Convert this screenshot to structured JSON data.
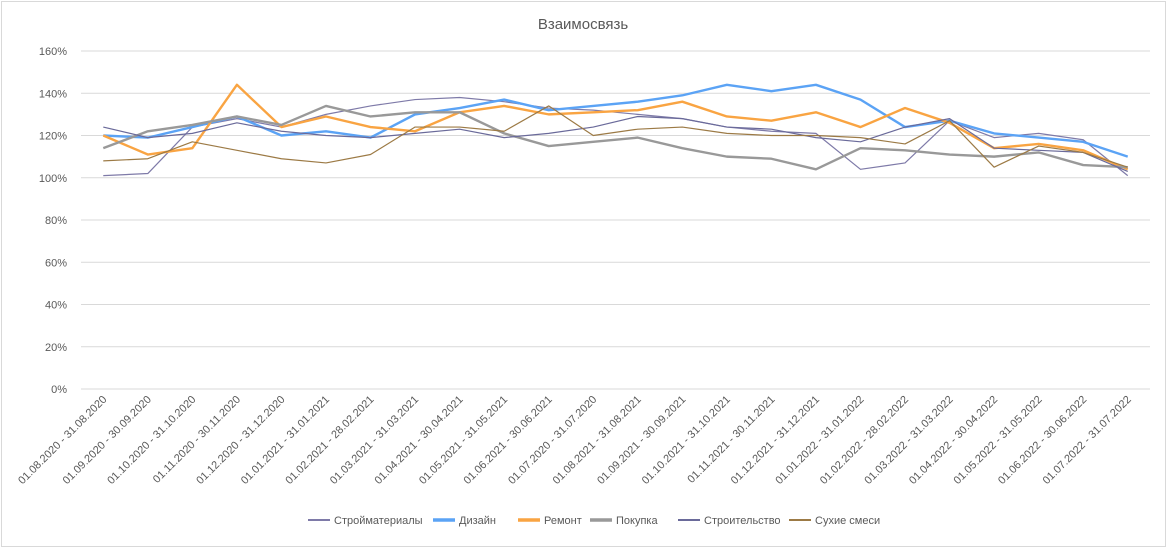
{
  "chart_data": {
    "type": "line",
    "title": "Взаимосвязь",
    "xlabel": "",
    "ylabel": "",
    "ylim": [
      0,
      160
    ],
    "yticks": [
      "0%",
      "20%",
      "40%",
      "60%",
      "80%",
      "100%",
      "120%",
      "140%",
      "160%"
    ],
    "grid": true,
    "legend_position": "bottom",
    "categories": [
      "01.08.2020 - 31.08.2020",
      "01.09.2020 - 30.09.2020",
      "01.10.2020 - 31.10.2020",
      "01.11.2020 - 30.11.2020",
      "01.12.2020 - 31.12.2020",
      "01.01.2021 - 31.01.2021",
      "01.02.2021 - 28.02.2021",
      "01.03.2021 - 31.03.2021",
      "01.04.2021 - 30.04.2021",
      "01.05.2021 - 31.05.2021",
      "01.06.2021 - 30.06.2021",
      "01.07.2020 - 31.07.2020",
      "01.08.2021 - 31.08.2021",
      "01.09.2021 - 30.09.2021",
      "01.10.2021 - 31.10.2021",
      "01.11.2021 - 30.11.2021",
      "01.12.2021 - 31.12.2021",
      "01.01.2022 - 31.01.2022",
      "01.02.2022 - 28.02.2022",
      "01.03.2022 - 31.03.2022",
      "01.04.2022 - 30.04.2022",
      "01.05.2022 - 31.05.2022",
      "01.06.2022 - 30.06.2022",
      "01.07.2022 - 31.07.2022"
    ],
    "series": [
      {
        "name": "Стройматериалы",
        "color": "#7e7aa8",
        "width": 1,
        "values": [
          101,
          102,
          124,
          128,
          124,
          130,
          134,
          137,
          138,
          136,
          133,
          132,
          130,
          128,
          124,
          122,
          121,
          104,
          107,
          127,
          119,
          121,
          118,
          101
        ]
      },
      {
        "name": "Дизайн",
        "color": "#5ba3f5",
        "width": 2,
        "values": [
          120,
          119,
          124,
          129,
          120,
          122,
          119,
          130,
          133,
          137,
          132,
          134,
          136,
          139,
          144,
          141,
          144,
          137,
          124,
          127,
          121,
          119,
          117,
          110
        ]
      },
      {
        "name": "Ремонт",
        "color": "#f9a442",
        "width": 2,
        "values": [
          120,
          111,
          114,
          144,
          124,
          129,
          124,
          122,
          131,
          134,
          130,
          131,
          132,
          136,
          129,
          127,
          131,
          124,
          133,
          126,
          114,
          116,
          113,
          104
        ]
      },
      {
        "name": "Покупка",
        "color": "#999999",
        "width": 2,
        "values": [
          114,
          122,
          125,
          129,
          125,
          134,
          129,
          131,
          131,
          121,
          115,
          117,
          119,
          114,
          110,
          109,
          104,
          114,
          113,
          111,
          110,
          112,
          106,
          105
        ]
      },
      {
        "name": "Строительство",
        "color": "#6a6a9a",
        "width": 1,
        "values": [
          124,
          119,
          121,
          126,
          122,
          120,
          119,
          121,
          123,
          119,
          121,
          124,
          129,
          128,
          124,
          123,
          119,
          117,
          124,
          128,
          114,
          113,
          112,
          103
        ]
      },
      {
        "name": "Сухие смеси",
        "color": "#9c7a45",
        "width": 1,
        "values": [
          108,
          109,
          117,
          113,
          109,
          107,
          111,
          124,
          124,
          122,
          134,
          120,
          123,
          124,
          121,
          120,
          120,
          119,
          116,
          127,
          105,
          115,
          112,
          105
        ]
      }
    ]
  }
}
